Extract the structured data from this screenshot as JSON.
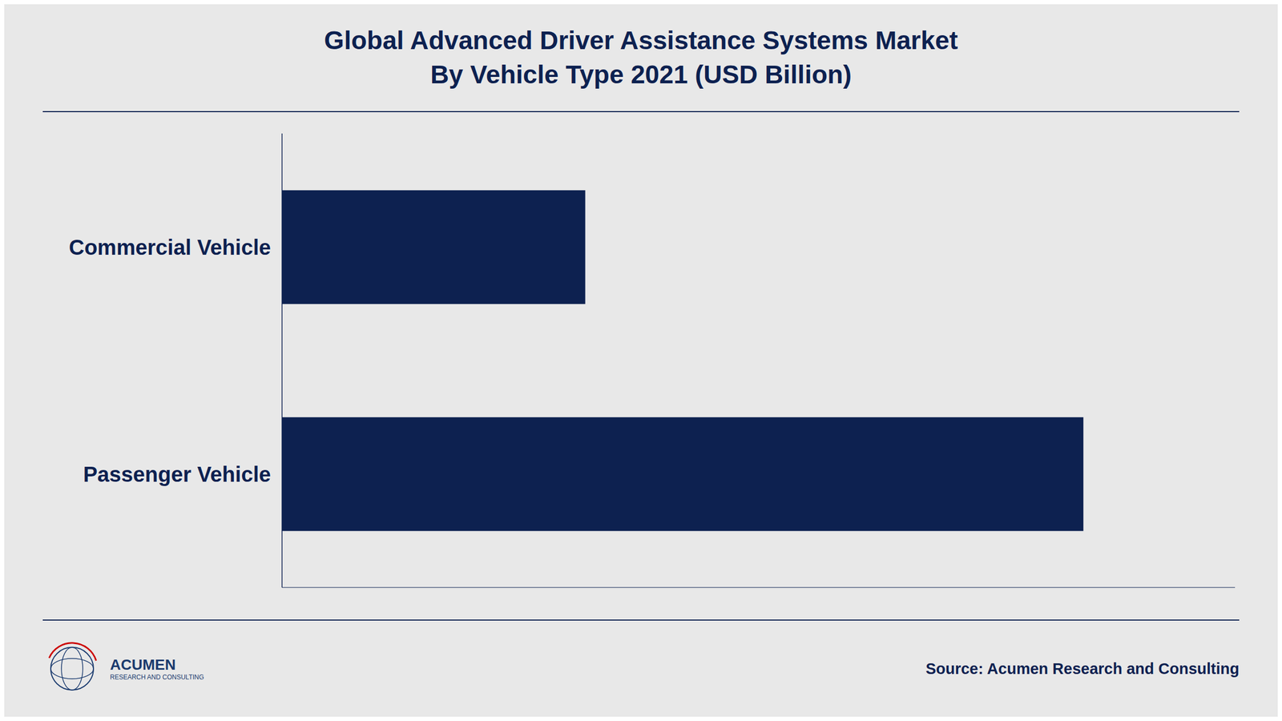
{
  "chart_data": {
    "type": "bar",
    "title": "Global Advanced Driver Assistance Systems Market",
    "subtitle": "By Vehicle Type 2021 (USD Billion)",
    "orientation": "horizontal",
    "categories": [
      "Passenger Vehicle",
      "Commercial Vehicle"
    ],
    "values": [
      18.5,
      7.0
    ],
    "color": "#0d2150",
    "xlim": [
      0,
      22
    ],
    "tick_labels": "y",
    "grid": false,
    "annotations": [
      "Source: Acumen Research and Consulting",
      "ACUMEN",
      "RESEARCH AND CONSULTING"
    ]
  }
}
